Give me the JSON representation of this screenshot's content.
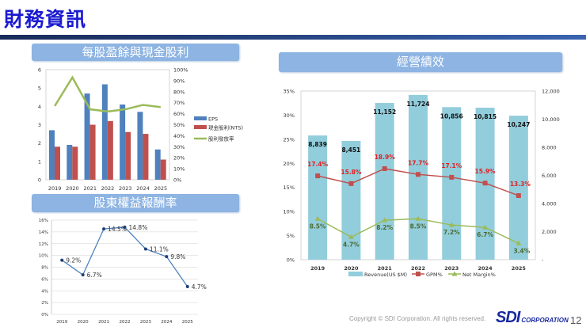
{
  "header": {
    "title": "財務資訊"
  },
  "sections": {
    "eps_title": "每股盈餘與現金股利",
    "roe_title": "股東權益報酬率",
    "perf_title": "經營績效"
  },
  "footer": {
    "copyright": "Copyright © SDI Corporation. All rights reserved.",
    "logo_text": "SDI",
    "logo_sub": "CORPORATION",
    "page": "12"
  },
  "colors": {
    "eps": "#4f81bd",
    "cash": "#c0504d",
    "payout": "#9bbb59",
    "roe": "#4f81bd",
    "revenue": "#92cddc",
    "gpm": "#c0504d",
    "net": "#9bbb59",
    "title": "#1a1ad0"
  },
  "chart_data": [
    {
      "type": "bar",
      "categories": [
        "2019",
        "2020",
        "2021",
        "2022",
        "2023",
        "2024",
        "2025"
      ],
      "series": [
        {
          "name": "EPS",
          "values": [
            2.7,
            1.9,
            4.7,
            5.2,
            4.1,
            3.7,
            1.65
          ]
        },
        {
          "name": "現金股利(NTS)",
          "values": [
            1.8,
            1.8,
            3.0,
            3.2,
            2.6,
            2.5,
            1.1
          ]
        },
        {
          "name": "股利發放率",
          "type": "line",
          "axis": "right",
          "values": [
            67,
            93,
            64,
            62,
            64,
            68,
            66
          ]
        }
      ],
      "ylim": [
        0,
        6
      ],
      "yticks": [
        "0",
        "1",
        "2",
        "3",
        "4",
        "5",
        "6"
      ],
      "y2lim": [
        0,
        100
      ],
      "y2ticks": [
        "0%",
        "10%",
        "20%",
        "30%",
        "40%",
        "50%",
        "60%",
        "70%",
        "80%",
        "90%",
        "100%"
      ],
      "legend": "right"
    },
    {
      "type": "line",
      "categories": [
        "2019",
        "2020",
        "2021",
        "2022",
        "2023",
        "2024",
        "2025"
      ],
      "values": [
        9.2,
        6.7,
        14.5,
        14.8,
        11.1,
        9.8,
        4.7
      ],
      "labels": [
        "9.2%",
        "6.7%",
        "14.5%",
        "14.8%",
        "11.1%",
        "9.8%",
        "4.7%"
      ],
      "ylim": [
        0,
        16
      ],
      "yticks": [
        "0%",
        "2%",
        "4%",
        "6%",
        "8%",
        "10%",
        "12%",
        "14%",
        "16%"
      ],
      "grid": true
    },
    {
      "type": "bar",
      "categories": [
        "2019",
        "2020",
        "2021",
        "2022",
        "2023",
        "2024",
        "2025"
      ],
      "series": [
        {
          "name": "Revenue(US $M)",
          "axis": "right",
          "values": [
            8839,
            8451,
            11152,
            11724,
            10856,
            10815,
            10247
          ],
          "labels": [
            "8,839",
            "8,451",
            "11,152",
            "11,724",
            "10,856",
            "10,815",
            "10,247"
          ]
        },
        {
          "name": "GPM%",
          "type": "line",
          "values": [
            17.4,
            15.8,
            18.9,
            17.7,
            17.1,
            15.9,
            13.3
          ],
          "labels": [
            "17.4%",
            "15.8%",
            "18.9%",
            "17.7%",
            "17.1%",
            "15.9%",
            "13.3%"
          ]
        },
        {
          "name": "Net Margin%",
          "type": "line",
          "values": [
            8.5,
            4.7,
            8.2,
            8.5,
            7.2,
            6.7,
            3.4
          ],
          "labels": [
            "8.5%",
            "4.7%",
            "8.2%",
            "8.5%",
            "7.2%",
            "6.7%",
            "3.4%"
          ]
        }
      ],
      "ylim": [
        0,
        35
      ],
      "yticks": [
        "0%",
        "5%",
        "10%",
        "15%",
        "20%",
        "25%",
        "30%",
        "35%"
      ],
      "y2lim": [
        0,
        12000
      ],
      "y2ticks": [
        "-",
        "2,000",
        "4,000",
        "6,000",
        "8,000",
        "10,000",
        "12,000"
      ],
      "legend": "bottom"
    }
  ]
}
